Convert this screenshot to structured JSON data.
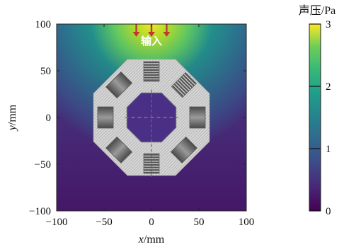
{
  "chart_data": {
    "type": "heatmap",
    "title": "",
    "x_axis": {
      "label_var": "x",
      "label_unit": "/mm",
      "lim": [
        -100,
        100
      ],
      "ticks": [
        -100,
        -50,
        0,
        50,
        100
      ],
      "tick_labels": [
        "−100",
        "−50",
        "0",
        "50",
        "100"
      ]
    },
    "y_axis": {
      "label_var": "y",
      "label_unit": "/mm",
      "lim": [
        -100,
        100
      ],
      "ticks": [
        -100,
        -50,
        0,
        50,
        100
      ],
      "tick_labels": [
        "−100",
        "−50",
        "0",
        "50",
        "100"
      ]
    },
    "colorbar": {
      "title": "声压/Pa",
      "lim": [
        0,
        3
      ],
      "ticks": [
        0,
        1,
        2,
        3
      ],
      "tick_labels": [
        "0",
        "1",
        "2",
        "3"
      ],
      "colormap": "viridis"
    },
    "annotation": {
      "text": "输入",
      "x": 0,
      "y": 78
    },
    "input_arrows_x": [
      -16,
      0,
      16
    ],
    "structure": {
      "shape": "octagon",
      "outer_radius_mm": 66,
      "inner_radius_mm": 28,
      "resonators": [
        "top",
        "top-right",
        "right",
        "bottom-right",
        "bottom",
        "bottom-left",
        "left",
        "top-left"
      ]
    },
    "colors": {
      "arrow": "#c0392b",
      "dashed_line_h": "#d9534f",
      "dashed_line_v": "#4a6fb5",
      "structure_fill": "#c8c8c8",
      "inner_field": "#4a2f86"
    }
  }
}
